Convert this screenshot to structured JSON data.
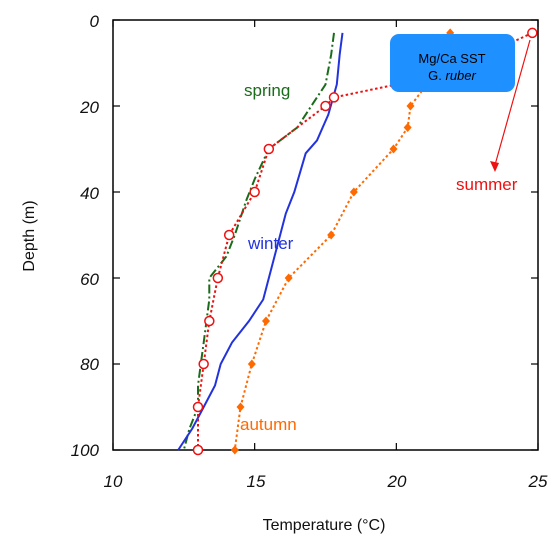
{
  "chart_data": {
    "type": "line",
    "xlabel": "Temperature (°C)",
    "ylabel": "Depth (m)",
    "xlim": [
      10,
      25
    ],
    "ylim": [
      100,
      0
    ],
    "x_ticks": [
      "10",
      "15",
      "20",
      "25"
    ],
    "y_ticks": [
      "0",
      "20",
      "40",
      "60",
      "80",
      "100"
    ],
    "y_tick_values": [
      0,
      20,
      40,
      60,
      80,
      100
    ],
    "x_tick_values": [
      10,
      15,
      20,
      25
    ],
    "series": [
      {
        "name": "spring",
        "color": "#1a6b1a",
        "style": "dash-dot",
        "marker": "none",
        "points": [
          [
            17.8,
            3
          ],
          [
            17.7,
            8
          ],
          [
            17.5,
            15
          ],
          [
            17.0,
            20
          ],
          [
            16.5,
            25
          ],
          [
            15.5,
            30
          ],
          [
            15.0,
            37
          ],
          [
            14.7,
            42
          ],
          [
            14.3,
            50
          ],
          [
            14.0,
            55
          ],
          [
            13.4,
            60
          ],
          [
            13.4,
            65
          ],
          [
            13.3,
            70
          ],
          [
            13.2,
            75
          ],
          [
            13.1,
            80
          ],
          [
            13.0,
            85
          ],
          [
            13.0,
            90
          ],
          [
            12.7,
            95
          ],
          [
            12.5,
            100
          ]
        ]
      },
      {
        "name": "winter",
        "color": "#2233dd",
        "style": "solid",
        "marker": "none",
        "points": [
          [
            18.1,
            3
          ],
          [
            18.0,
            8
          ],
          [
            17.9,
            15
          ],
          [
            17.6,
            22
          ],
          [
            17.2,
            28
          ],
          [
            16.8,
            31
          ],
          [
            16.4,
            40
          ],
          [
            16.1,
            45
          ],
          [
            15.7,
            55
          ],
          [
            15.3,
            65
          ],
          [
            14.8,
            70
          ],
          [
            14.2,
            75
          ],
          [
            13.8,
            80
          ],
          [
            13.6,
            85
          ],
          [
            13.2,
            90
          ],
          [
            12.8,
            95
          ],
          [
            12.3,
            100
          ]
        ]
      },
      {
        "name": "summer",
        "color": "#ee1111",
        "style": "dotted",
        "marker": "open-circle",
        "points": [
          [
            24.8,
            3
          ],
          [
            22.5,
            10
          ],
          [
            20.0,
            15
          ],
          [
            17.8,
            18
          ],
          [
            17.5,
            20
          ],
          [
            15.5,
            30
          ],
          [
            15.0,
            40
          ],
          [
            14.1,
            50
          ],
          [
            13.7,
            60
          ],
          [
            13.4,
            70
          ],
          [
            13.2,
            80
          ],
          [
            13.0,
            90
          ],
          [
            13.0,
            100
          ]
        ]
      },
      {
        "name": "autumn",
        "color": "#ff6a00",
        "style": "dotted",
        "marker": "filled-diamond",
        "points": [
          [
            21.9,
            3
          ],
          [
            21.3,
            13
          ],
          [
            20.5,
            20
          ],
          [
            20.4,
            25
          ],
          [
            19.9,
            30
          ],
          [
            18.5,
            40
          ],
          [
            17.7,
            50
          ],
          [
            16.2,
            60
          ],
          [
            15.4,
            70
          ],
          [
            14.9,
            80
          ],
          [
            14.5,
            90
          ],
          [
            14.3,
            100
          ]
        ]
      }
    ],
    "annotations": [
      {
        "text": "spring",
        "color": "#1a6b1a"
      },
      {
        "text": "winter",
        "color": "#2233dd"
      },
      {
        "text": "summer",
        "color": "#ee1111"
      },
      {
        "text": "autumn",
        "color": "#ff6a00"
      }
    ],
    "legend_box": {
      "line1": "Mg/Ca SST",
      "line2a": "G.",
      "line2b": "ruber",
      "fill": "#1e90ff"
    },
    "grid": false,
    "legend": "none"
  }
}
